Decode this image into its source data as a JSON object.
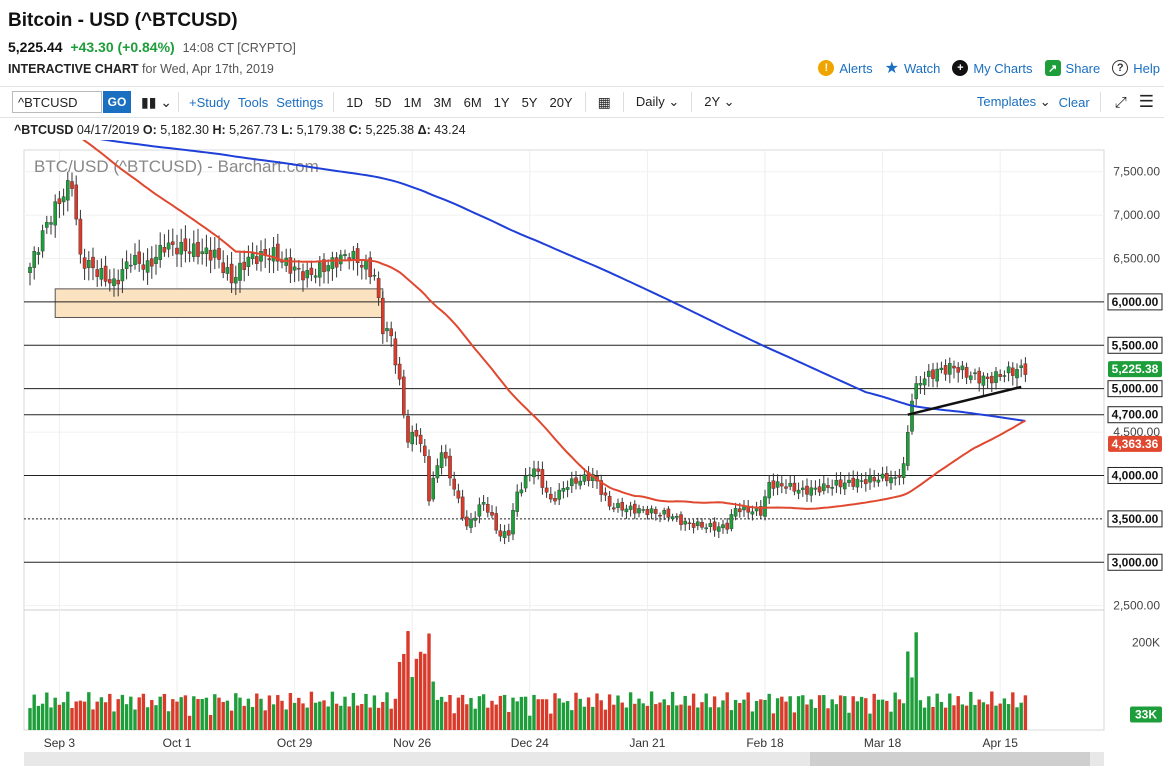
{
  "header": {
    "title": "Bitcoin - USD (^BTCUSD)",
    "last": "5,225.44",
    "change": "+43.30 (+0.84%)",
    "time": "14:08 CT [CRYPTO]",
    "chart_label": "INTERACTIVE CHART",
    "chart_date": "for Wed, Apr 17th, 2019"
  },
  "actions": [
    {
      "label": "Alerts",
      "icon": "alert-icon"
    },
    {
      "label": "Watch",
      "icon": "star-icon"
    },
    {
      "label": "My Charts",
      "icon": "plus-circle-icon"
    },
    {
      "label": "Share",
      "icon": "share-icon"
    },
    {
      "label": "Help",
      "icon": "help-icon"
    }
  ],
  "toolbar": {
    "symbol": "^BTCUSD",
    "go": "GO",
    "study": "+Study",
    "tools": "Tools",
    "settings": "Settings",
    "ranges": [
      "1D",
      "5D",
      "1M",
      "3M",
      "6M",
      "1Y",
      "5Y",
      "20Y"
    ],
    "interval": "Daily",
    "period": "2Y",
    "templates": "Templates",
    "clear": "Clear"
  },
  "ohlc": {
    "symbol": "^BTCUSD",
    "date": "04/17/2019",
    "o_label": "O:",
    "o": "5,182.30",
    "h_label": "H:",
    "h": "5,267.73",
    "l_label": "L:",
    "l": "5,179.38",
    "c_label": "C:",
    "c": "5,225.38",
    "d_label": "Δ:",
    "d": "43.24"
  },
  "chart_data": {
    "type": "candlestick",
    "watermark": "BTC/USD (^BTCUSD) - Barchart.com",
    "colors": {
      "up": "#1e9e3a",
      "down": "#d93a2a",
      "ma_long": "#1f3fd9",
      "ma_short": "#e0482f",
      "zone": "#fbe3c2"
    },
    "y_ticks": [
      2500,
      3000,
      3500,
      4000,
      4500,
      5000,
      5500,
      6000,
      6500,
      7000,
      7500
    ],
    "y_tick_labels": [
      "2,500.00",
      "3,000.00",
      "3,500.00",
      "4,000.00",
      "4,500.00",
      "5,000.00",
      "5,500.00",
      "6,000.00",
      "6,500.00",
      "7,000.00",
      "7,500.00"
    ],
    "ylim": [
      2450,
      7750
    ],
    "x_labels": [
      {
        "label": "Sep 3",
        "index": 7
      },
      {
        "label": "Oct 1",
        "index": 35
      },
      {
        "label": "Oct 29",
        "index": 63
      },
      {
        "label": "Nov 26",
        "index": 91
      },
      {
        "label": "Dec 24",
        "index": 119
      },
      {
        "label": "Jan 21",
        "index": 147
      },
      {
        "label": "Feb 18",
        "index": 175
      },
      {
        "label": "Mar 18",
        "index": 203
      },
      {
        "label": "Apr 15",
        "index": 231
      }
    ],
    "horizontal_lines": [
      {
        "value": 3000,
        "label": "3,000.00"
      },
      {
        "value": 3500,
        "label": "3,500.00",
        "dashed": true
      },
      {
        "value": 4000,
        "label": "4,000.00"
      },
      {
        "value": 4700,
        "label": "4,700.00"
      },
      {
        "value": 5000,
        "label": "5,000.00"
      },
      {
        "value": 5500,
        "label": "5,500.00"
      },
      {
        "value": 6000,
        "label": "6,000.00"
      }
    ],
    "zone": {
      "from_index": 6,
      "to_index": 84,
      "low": 5820,
      "high": 6150
    },
    "trendline": {
      "from_index": 209,
      "from_value": 4700,
      "to_index": 236,
      "to_value": 5020
    },
    "price_badges": [
      {
        "value": 5225.38,
        "label": "5,225.38",
        "color": "#1e9e3a"
      },
      {
        "value": 4363.36,
        "label": "4,363.36",
        "color": "#e0482f"
      }
    ],
    "volume_ticks": [
      {
        "value": 200000,
        "label": "200K"
      }
    ],
    "volume_badge": {
      "value": 33000,
      "label": "33K"
    },
    "volume_max": 260000,
    "anchors": [
      [
        0,
        6400
      ],
      [
        4,
        6900
      ],
      [
        8,
        7250
      ],
      [
        10,
        7380
      ],
      [
        12,
        6500
      ],
      [
        16,
        6350
      ],
      [
        20,
        6200
      ],
      [
        24,
        6500
      ],
      [
        28,
        6400
      ],
      [
        32,
        6650
      ],
      [
        38,
        6600
      ],
      [
        44,
        6550
      ],
      [
        48,
        6250
      ],
      [
        52,
        6500
      ],
      [
        58,
        6550
      ],
      [
        62,
        6400
      ],
      [
        66,
        6300
      ],
      [
        72,
        6450
      ],
      [
        76,
        6550
      ],
      [
        80,
        6400
      ],
      [
        82,
        6300
      ],
      [
        84,
        5700
      ],
      [
        86,
        5600
      ],
      [
        88,
        5050
      ],
      [
        90,
        4400
      ],
      [
        92,
        4500
      ],
      [
        94,
        4200
      ],
      [
        95,
        3750
      ],
      [
        98,
        4300
      ],
      [
        100,
        4000
      ],
      [
        104,
        3400
      ],
      [
        108,
        3700
      ],
      [
        110,
        3500
      ],
      [
        112,
        3300
      ],
      [
        114,
        3350
      ],
      [
        116,
        3800
      ],
      [
        120,
        4100
      ],
      [
        124,
        3700
      ],
      [
        128,
        3900
      ],
      [
        134,
        4000
      ],
      [
        138,
        3650
      ],
      [
        142,
        3620
      ],
      [
        148,
        3580
      ],
      [
        152,
        3550
      ],
      [
        156,
        3450
      ],
      [
        160,
        3420
      ],
      [
        164,
        3400
      ],
      [
        166,
        3420
      ],
      [
        168,
        3620
      ],
      [
        174,
        3580
      ],
      [
        176,
        3900
      ],
      [
        180,
        3880
      ],
      [
        184,
        3820
      ],
      [
        188,
        3850
      ],
      [
        192,
        3900
      ],
      [
        196,
        3920
      ],
      [
        200,
        3950
      ],
      [
        204,
        3980
      ],
      [
        206,
        3950
      ],
      [
        208,
        4100
      ],
      [
        210,
        4900
      ],
      [
        212,
        5100
      ],
      [
        216,
        5200
      ],
      [
        220,
        5250
      ],
      [
        224,
        5150
      ],
      [
        228,
        5100
      ],
      [
        232,
        5180
      ],
      [
        236,
        5225
      ]
    ]
  }
}
